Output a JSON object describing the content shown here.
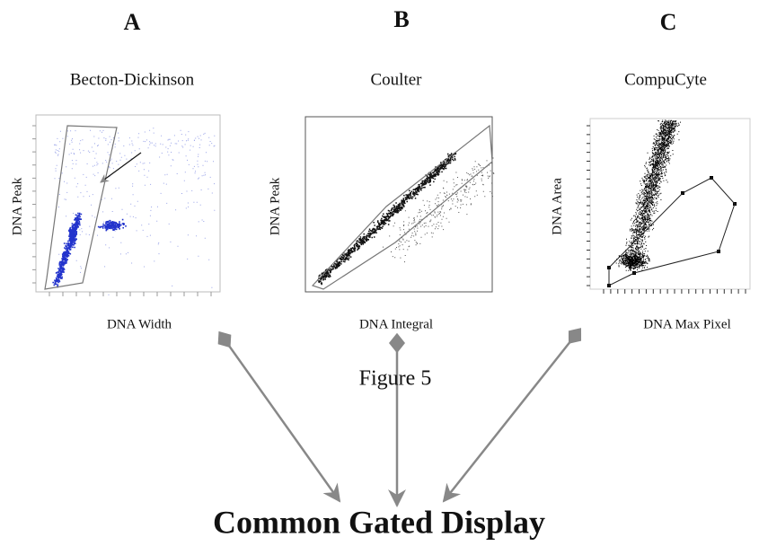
{
  "panels": [
    {
      "letter": "A",
      "instrument": "Becton-Dickinson",
      "y_label": "DNA Peak",
      "x_label": "DNA Width"
    },
    {
      "letter": "B",
      "instrument": "Coulter",
      "y_label": "DNA Peak",
      "x_label": "DNA Integral"
    },
    {
      "letter": "C",
      "instrument": "CompuCyte",
      "y_label": "DNA Area",
      "x_label": "DNA Max Pixel"
    }
  ],
  "caption": "Figure 5",
  "footer": {
    "title": "Common Gated Display"
  }
}
